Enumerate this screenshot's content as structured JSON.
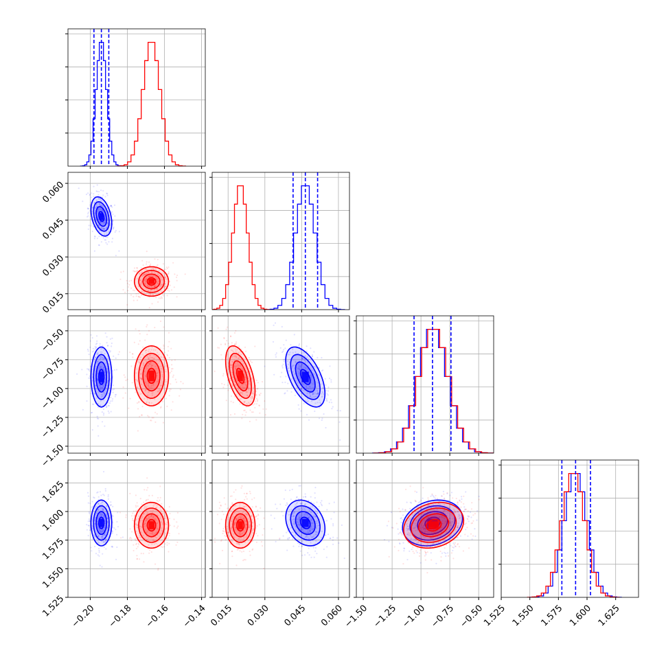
{
  "chart_data": {
    "type": "corner",
    "grid": true,
    "colors": {
      "blue": "#0000ff",
      "red": "#ff0000"
    },
    "params": [
      {
        "range": [
          -0.212,
          -0.138
        ],
        "ticks": [
          "−0.20",
          "−0.18",
          "−0.16",
          "−0.14"
        ],
        "tick_values": [
          -0.2,
          -0.18,
          -0.16,
          -0.14
        ]
      },
      {
        "range": [
          0.0085,
          0.0645
        ],
        "ticks": [
          "0.015",
          "0.030",
          "0.045",
          "0.060"
        ],
        "tick_values": [
          0.015,
          0.03,
          0.045,
          0.06
        ]
      },
      {
        "range": [
          -1.56,
          -0.37
        ],
        "ticks": [
          "−1.50",
          "−1.25",
          "−1.00",
          "−0.75",
          "−0.50"
        ],
        "tick_values": [
          -1.5,
          -1.25,
          -1.0,
          -0.75,
          -0.5
        ]
      },
      {
        "range": [
          1.525,
          1.645
        ],
        "ticks": [
          "1.525",
          "1.550",
          "1.575",
          "1.600",
          "1.625"
        ],
        "tick_values": [
          1.525,
          1.55,
          1.575,
          1.6,
          1.625
        ]
      }
    ],
    "series": [
      {
        "color": "blue",
        "mean": [
          -0.194,
          0.0465,
          -0.9,
          1.59
        ],
        "std": [
          0.0028,
          0.004,
          0.13,
          0.01
        ]
      },
      {
        "color": "red",
        "mean": [
          -0.167,
          0.02,
          -0.89,
          1.588
        ],
        "std": [
          0.0046,
          0.003,
          0.13,
          0.01
        ]
      }
    ],
    "correlations": {
      "blue": {
        "1-0": -0.35,
        "2-0": 0.0,
        "2-1": -0.55,
        "3-0": 0.0,
        "3-1": -0.25,
        "3-2": 0.2
      },
      "red": {
        "1-0": 0.0,
        "2-0": 0.0,
        "2-1": -0.5,
        "3-0": 0.0,
        "3-1": 0.0,
        "3-2": 0.2
      }
    },
    "blue_quantile_lines": [
      [
        -0.198,
        -0.194,
        -0.19
      ],
      [
        0.0415,
        0.0465,
        0.0515
      ],
      [
        -1.06,
        -0.9,
        -0.74
      ],
      [
        1.578,
        1.59,
        1.603
      ]
    ]
  }
}
